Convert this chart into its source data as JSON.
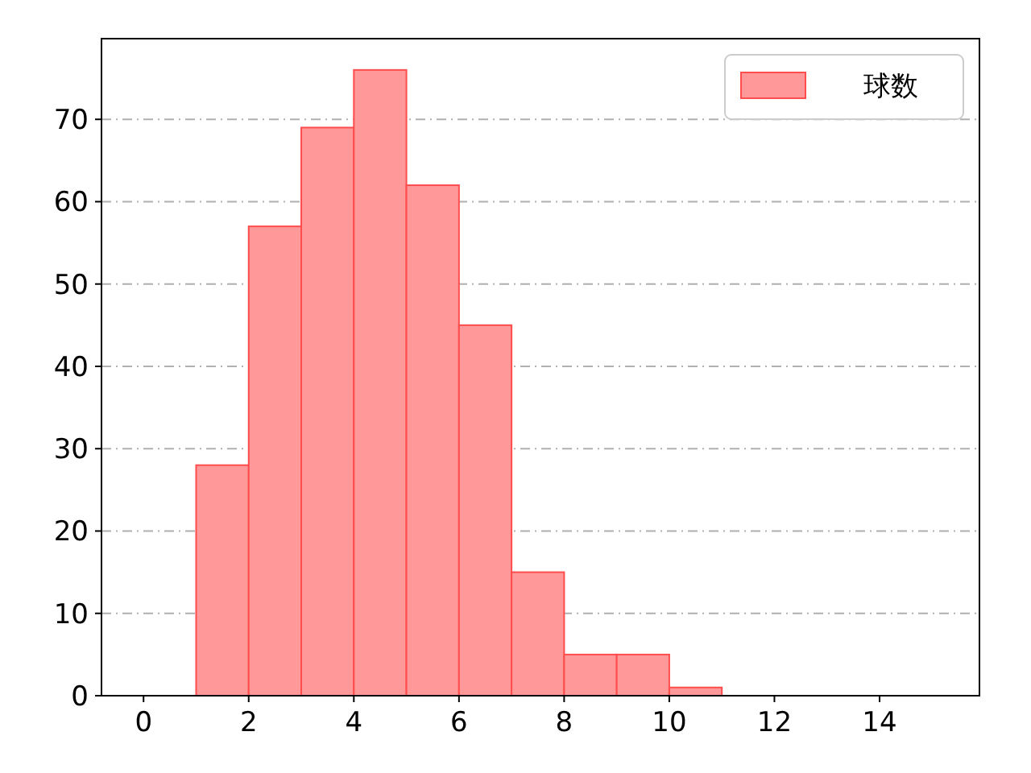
{
  "chart_data": {
    "type": "histogram",
    "bins": [
      1,
      2,
      3,
      4,
      5,
      6,
      7,
      8,
      9,
      10,
      11
    ],
    "series": [
      {
        "name": "球数",
        "color": "#ff9999",
        "values": [
          28,
          57,
          69,
          76,
          62,
          45,
          15,
          5,
          5,
          1
        ]
      }
    ],
    "xlim": [
      -0.8,
      15.9
    ],
    "xticks": [
      0,
      2,
      4,
      6,
      8,
      10,
      12,
      14
    ],
    "ylim": [
      0,
      79.8
    ],
    "yticks": [
      0,
      10,
      20,
      30,
      40,
      50,
      60,
      70
    ],
    "grid": "y",
    "legend": "top right"
  }
}
